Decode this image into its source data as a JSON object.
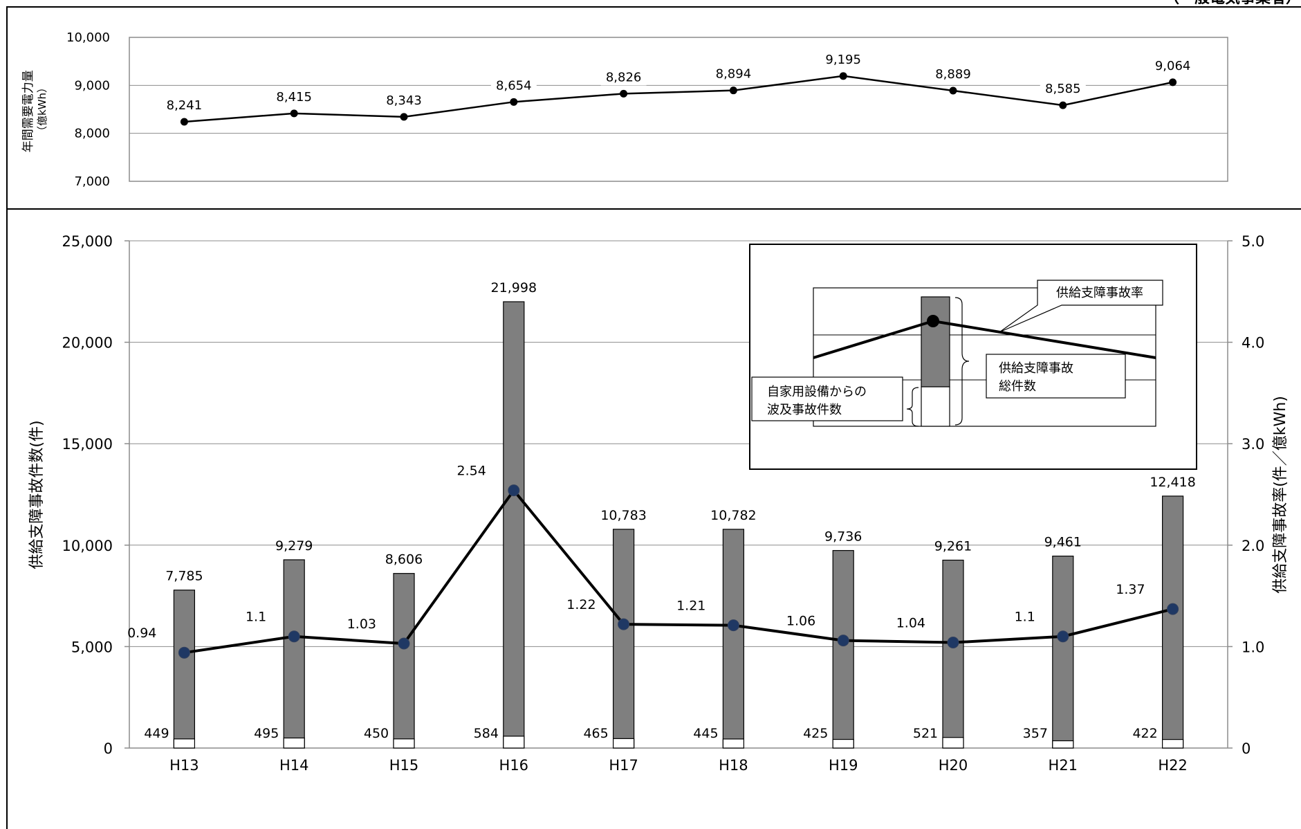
{
  "corner_label": "（一般電気事業者）",
  "chart_data": [
    {
      "type": "line",
      "ylabel": "年間需要電力量",
      "ylabel_unit": "（億kWh）",
      "categories": [
        "H13",
        "H14",
        "H15",
        "H16",
        "H17",
        "H18",
        "H19",
        "H20",
        "H21",
        "H22"
      ],
      "values": [
        8241,
        8415,
        8343,
        8654,
        8826,
        8894,
        9195,
        8889,
        8585,
        9064
      ],
      "value_labels": [
        "8,241",
        "8,415",
        "8,343",
        "8,654",
        "8,826",
        "8,894",
        "9,195",
        "8,889",
        "8,585",
        "9,064"
      ],
      "ylim": [
        7000,
        10000
      ],
      "yticks": [
        "7,000",
        "8,000",
        "9,000",
        "10,000"
      ],
      "grid": true,
      "colors": {
        "line": "#000000",
        "marker": "#000000"
      }
    },
    {
      "type": "bar",
      "categories": [
        "H13",
        "H14",
        "H15",
        "H16",
        "H17",
        "H18",
        "H19",
        "H20",
        "H21",
        "H22"
      ],
      "ylabel_left": "供給支障事故件数(件)",
      "ylabel_right": "供給支障事故率(件／億kWh)",
      "ylim_left": [
        0,
        25000
      ],
      "ylim_right": [
        0,
        5.0
      ],
      "yticks_left": [
        "0",
        "5,000",
        "10,000",
        "15,000",
        "20,000",
        "25,000"
      ],
      "yticks_right": [
        "0",
        "1.0",
        "2.0",
        "3.0",
        "4.0",
        "5.0"
      ],
      "grid": true,
      "series": [
        {
          "name": "供給支障事故総件数",
          "type": "bar",
          "values": [
            7785,
            9279,
            8606,
            21998,
            10783,
            10782,
            9736,
            9261,
            9461,
            12418
          ],
          "labels": [
            "7,785",
            "9,279",
            "8,606",
            "21,998",
            "10,783",
            "10,782",
            "9,736",
            "9,261",
            "9,461",
            "12,418"
          ],
          "color": "#7f7f7f"
        },
        {
          "name": "自家用設備からの波及事故件数",
          "type": "bar",
          "values": [
            449,
            495,
            450,
            584,
            465,
            445,
            425,
            521,
            357,
            422
          ],
          "labels": [
            "449",
            "495",
            "450",
            "584",
            "465",
            "445",
            "425",
            "521",
            "357",
            "422"
          ],
          "color": "#ffffff"
        },
        {
          "name": "供給支障事故率",
          "type": "line",
          "axis": "right",
          "values": [
            0.94,
            1.1,
            1.03,
            2.54,
            1.22,
            1.21,
            1.06,
            1.04,
            1.1,
            1.37
          ],
          "labels": [
            "0.94",
            "1.1",
            "1.03",
            "2.54",
            "1.22",
            "1.21",
            "1.06",
            "1.04",
            "1.1",
            "1.37"
          ],
          "color": "#000000",
          "marker_color": "#1f3864"
        }
      ],
      "legend": {
        "placement": "top-right",
        "rate_label": "供給支障事故率",
        "total_label_line1": "供給支障事故",
        "total_label_line2": "総件数",
        "spill_label_line1": "自家用設備からの",
        "spill_label_line2": "波及事故件数"
      }
    }
  ]
}
